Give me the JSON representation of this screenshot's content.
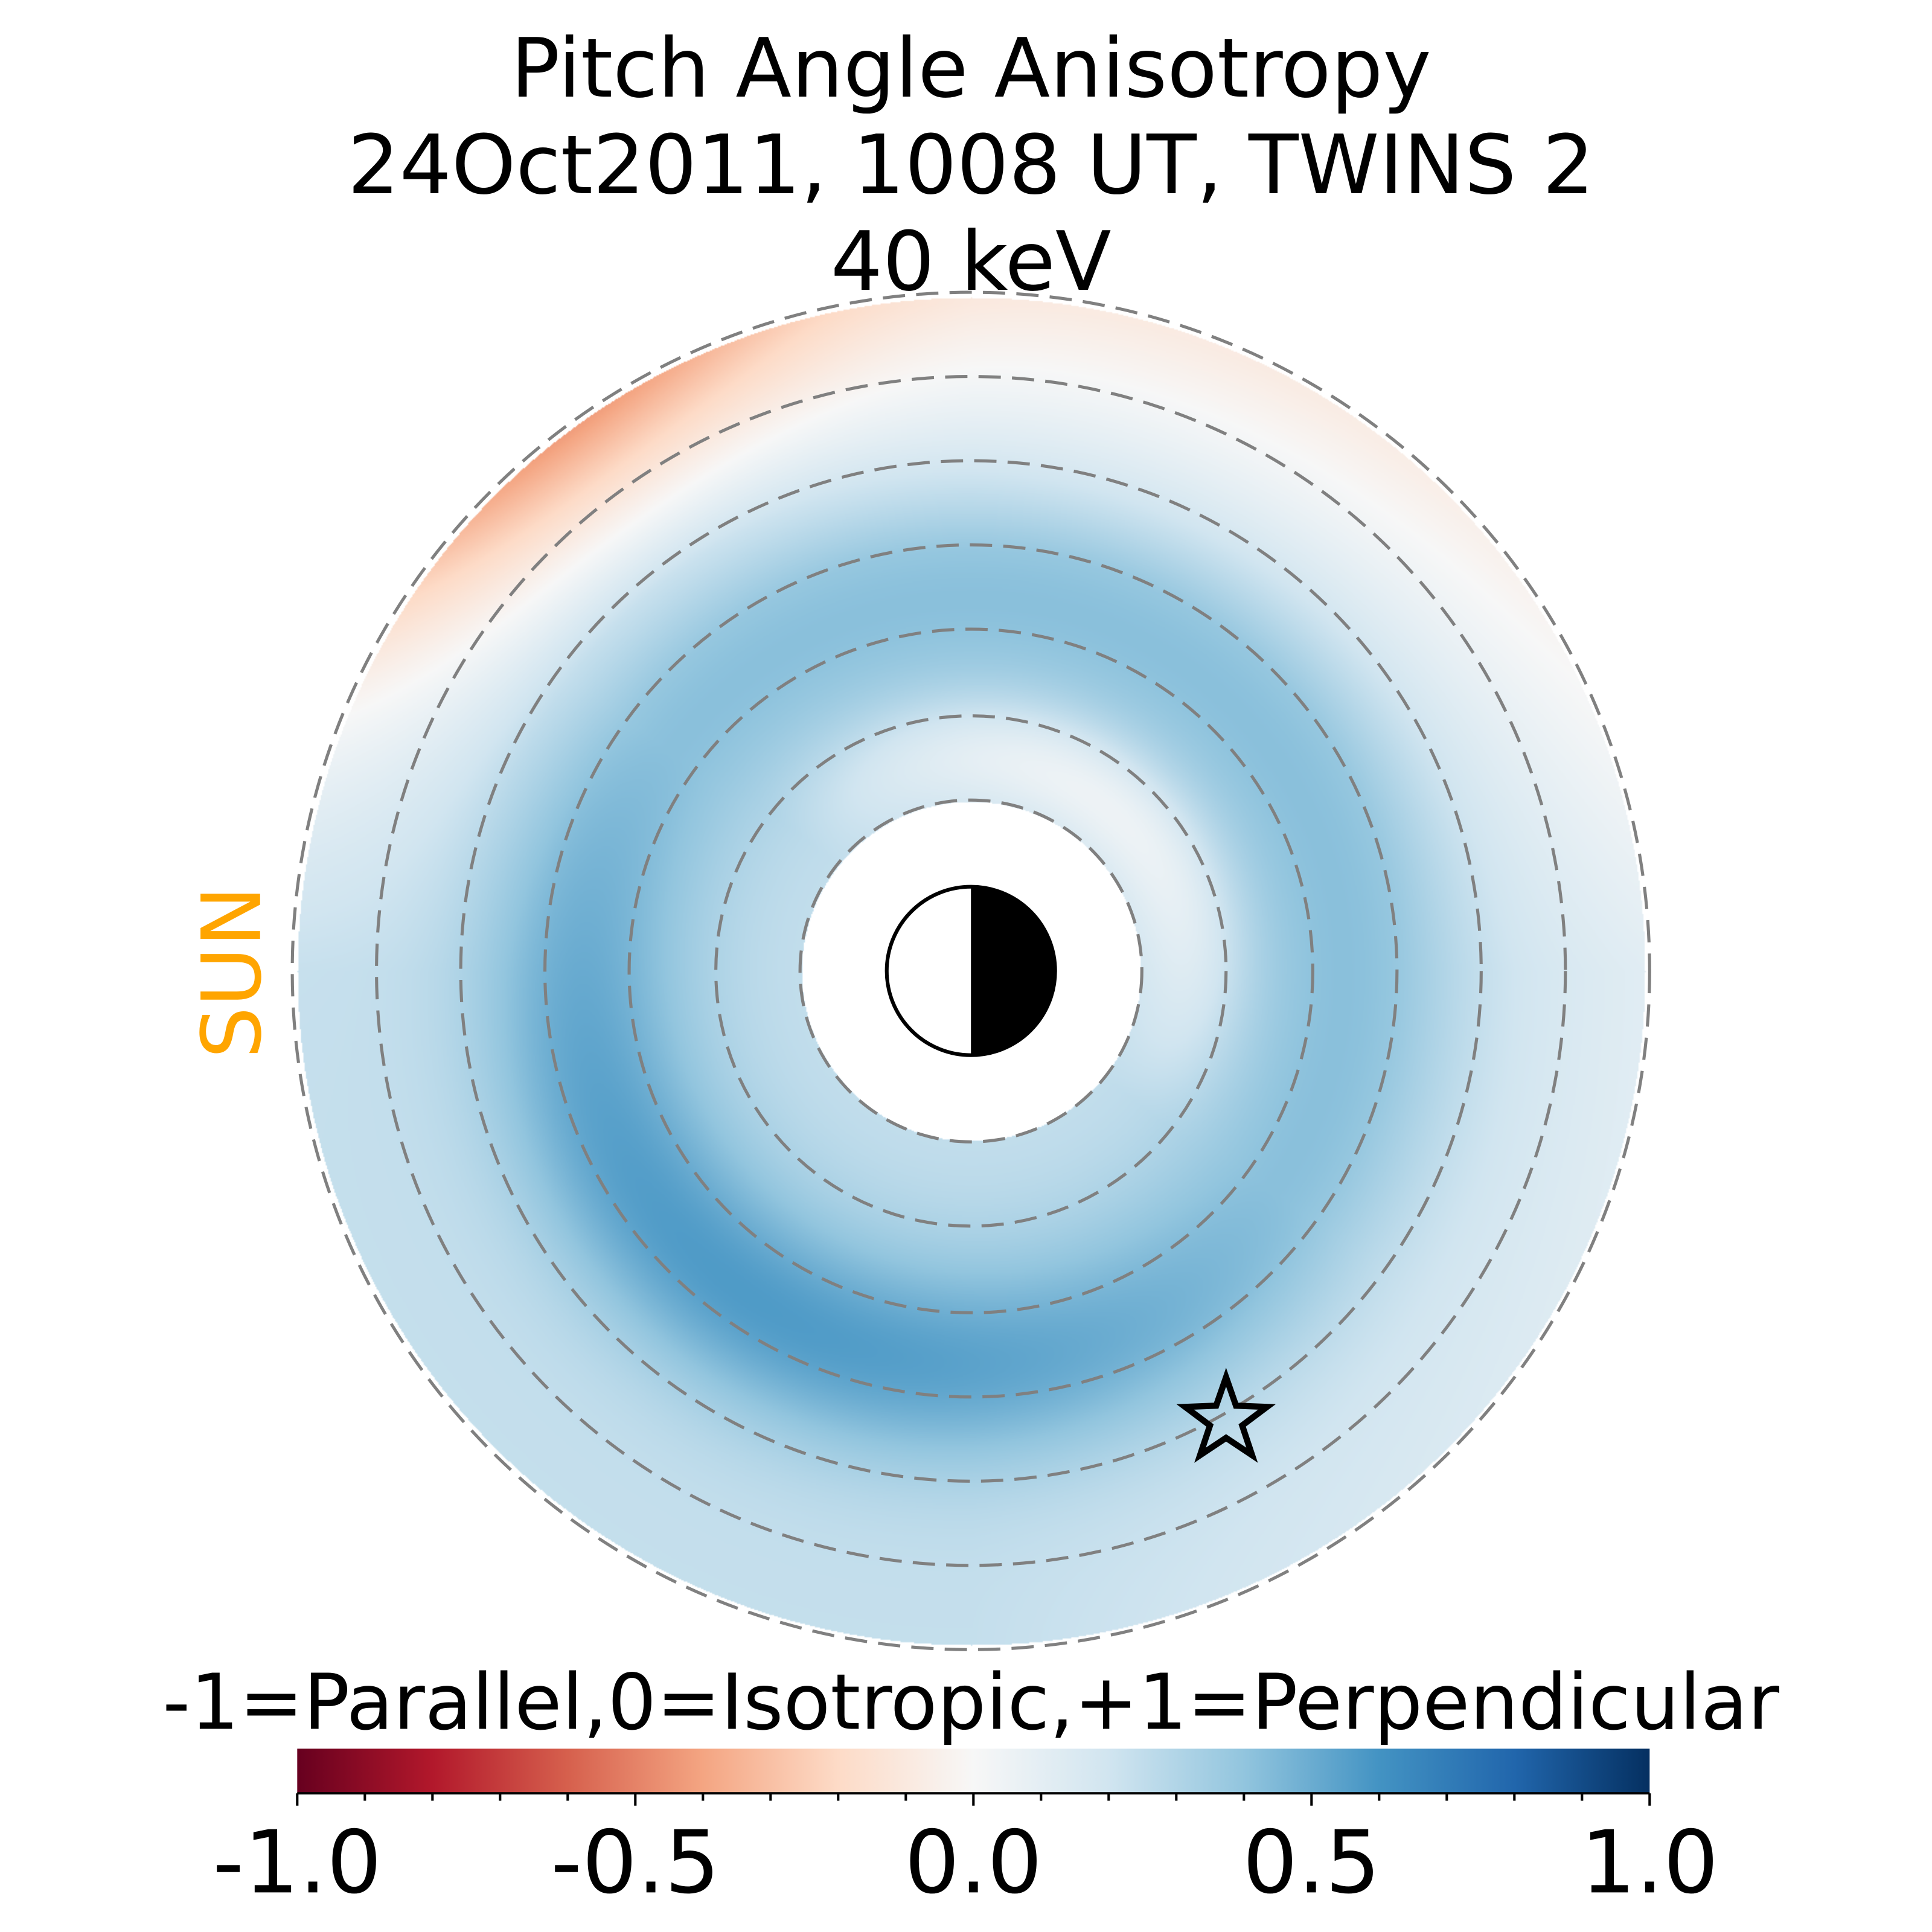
{
  "chart_data": {
    "type": "heatmap",
    "title_lines": [
      "Pitch Angle Anisotropy",
      "24Oct2011, 1008 UT,  TWINS 2",
      "40 keV"
    ],
    "projection": "polar, Earth-centered, sun to the left",
    "annotations": {
      "sun_label": "SUN",
      "spacecraft_marker": "star"
    },
    "colorbar": {
      "label": "-1=Parallel,0=Isotropic,+1=Perpendicular",
      "range": [
        -1.0,
        1.0
      ],
      "colormap": "RdBu_r",
      "tick_values": [
        -1.0,
        -0.5,
        0.0,
        0.5,
        1.0
      ],
      "tick_labels": [
        "-1.0",
        "-0.5",
        "0.0",
        "0.5",
        "1.0"
      ],
      "minor_tick_step": 0.1
    },
    "rings_count": 7,
    "description_values": {
      "typical_value": 0.25,
      "ring_max": 0.5,
      "upper_left_outer_min": -0.4
    },
    "colors": {
      "sun": "#FFA500",
      "ring_dash": "#808080"
    }
  }
}
